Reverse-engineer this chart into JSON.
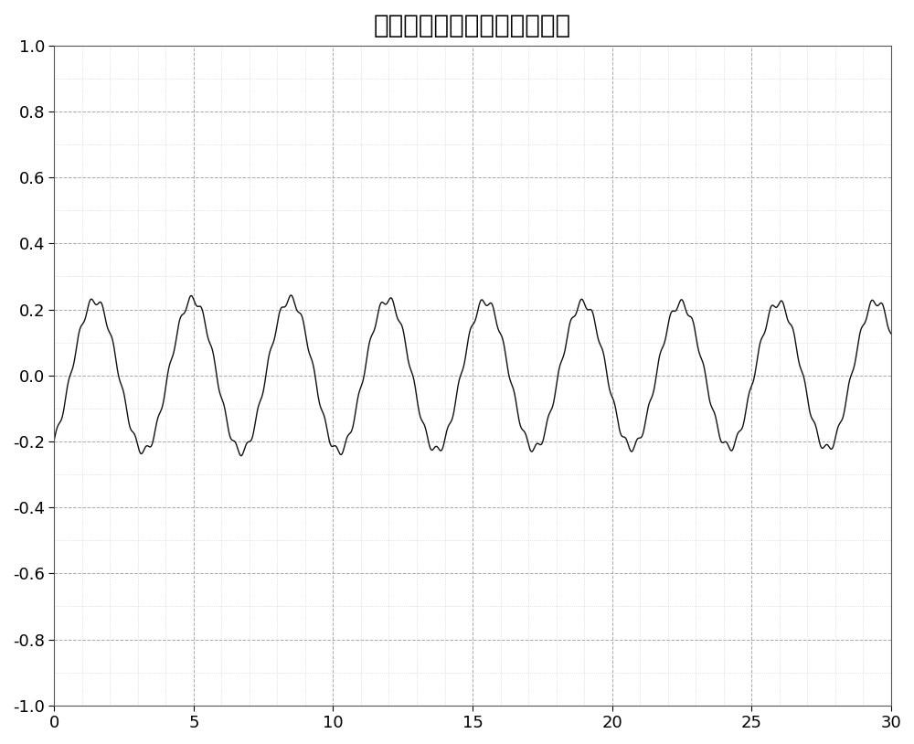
{
  "title": "等波纹滤波后的雷达呼吸信号",
  "xlim": [
    0,
    30
  ],
  "ylim": [
    -1,
    1
  ],
  "xticks": [
    0,
    5,
    10,
    15,
    20,
    25,
    30
  ],
  "yticks": [
    -1,
    -0.8,
    -0.6,
    -0.4,
    -0.2,
    0,
    0.2,
    0.4,
    0.6,
    0.8,
    1
  ],
  "grid_color_dash": "#AAAAAA",
  "grid_color_dot": "#CCCCCC",
  "line_color": "#111111",
  "background_color": "#ffffff",
  "title_fontsize": 20,
  "n_points": 3000,
  "main_freq": 0.2857,
  "main_amp": 0.225,
  "main_phase_deg": -60,
  "ripple_freq": 2.5,
  "ripple_amp": 0.012,
  "env_mod_freq": 0.033,
  "env_mod_amp": 0.03
}
